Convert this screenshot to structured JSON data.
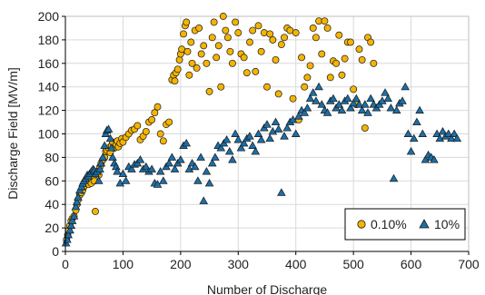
{
  "colors": {
    "series_a": "#F5B400",
    "series_b": "#1B6FA8",
    "marker_edge": "#1a1a1a",
    "grid": "#d9d9d9",
    "axis": "#000000"
  },
  "chart_data": {
    "type": "scatter",
    "xlabel": "Number of Discharge",
    "ylabel": "Discharge Field [MV/m]",
    "xlim": [
      0,
      700
    ],
    "ylim": [
      0,
      200
    ],
    "xticks": [
      0,
      100,
      200,
      300,
      400,
      500,
      600,
      700
    ],
    "yticks": [
      0,
      20,
      40,
      60,
      80,
      100,
      120,
      140,
      160,
      180,
      200
    ],
    "grid": true,
    "legend_position": "bottom-right",
    "series": [
      {
        "name": "0.10%",
        "marker": "circle",
        "color": "#F5B400",
        "points": [
          [
            2,
            10
          ],
          [
            4,
            14
          ],
          [
            6,
            18
          ],
          [
            8,
            22
          ],
          [
            10,
            26
          ],
          [
            12,
            28
          ],
          [
            15,
            30
          ],
          [
            18,
            35
          ],
          [
            20,
            40
          ],
          [
            22,
            44
          ],
          [
            25,
            48
          ],
          [
            28,
            50
          ],
          [
            30,
            52
          ],
          [
            32,
            55
          ],
          [
            35,
            58
          ],
          [
            38,
            60
          ],
          [
            40,
            57
          ],
          [
            42,
            62
          ],
          [
            45,
            58
          ],
          [
            48,
            64
          ],
          [
            50,
            60
          ],
          [
            52,
            34
          ],
          [
            55,
            68
          ],
          [
            58,
            65
          ],
          [
            60,
            72
          ],
          [
            62,
            75
          ],
          [
            65,
            78
          ],
          [
            68,
            80
          ],
          [
            70,
            85
          ],
          [
            72,
            86
          ],
          [
            75,
            88
          ],
          [
            78,
            84
          ],
          [
            80,
            90
          ],
          [
            82,
            93
          ],
          [
            85,
            88
          ],
          [
            88,
            91
          ],
          [
            90,
            94
          ],
          [
            92,
            89
          ],
          [
            95,
            92
          ],
          [
            98,
            96
          ],
          [
            100,
            93
          ],
          [
            105,
            97
          ],
          [
            110,
            100
          ],
          [
            115,
            103
          ],
          [
            120,
            104
          ],
          [
            125,
            107
          ],
          [
            130,
            95
          ],
          [
            135,
            98
          ],
          [
            140,
            102
          ],
          [
            145,
            110
          ],
          [
            150,
            112
          ],
          [
            155,
            118
          ],
          [
            160,
            123
          ],
          [
            165,
            100
          ],
          [
            170,
            94
          ],
          [
            175,
            108
          ],
          [
            180,
            110
          ],
          [
            185,
            146
          ],
          [
            188,
            150
          ],
          [
            190,
            145
          ],
          [
            192,
            152
          ],
          [
            195,
            155
          ],
          [
            198,
            163
          ],
          [
            200,
            168
          ],
          [
            202,
            172
          ],
          [
            205,
            185
          ],
          [
            208,
            192
          ],
          [
            210,
            195
          ],
          [
            212,
            170
          ],
          [
            215,
            150
          ],
          [
            218,
            178
          ],
          [
            220,
            160
          ],
          [
            225,
            188
          ],
          [
            228,
            156
          ],
          [
            232,
            190
          ],
          [
            236,
            168
          ],
          [
            240,
            175
          ],
          [
            245,
            160
          ],
          [
            250,
            136
          ],
          [
            255,
            182
          ],
          [
            258,
            195
          ],
          [
            262,
            165
          ],
          [
            266,
            175
          ],
          [
            270,
            140
          ],
          [
            274,
            200
          ],
          [
            278,
            188
          ],
          [
            282,
            182
          ],
          [
            286,
            170
          ],
          [
            290,
            160
          ],
          [
            295,
            195
          ],
          [
            300,
            186
          ],
          [
            305,
            168
          ],
          [
            310,
            165
          ],
          [
            315,
            152
          ],
          [
            320,
            178
          ],
          [
            325,
            188
          ],
          [
            330,
            153
          ],
          [
            335,
            192
          ],
          [
            340,
            170
          ],
          [
            345,
            186
          ],
          [
            350,
            140
          ],
          [
            355,
            185
          ],
          [
            360,
            180
          ],
          [
            365,
            163
          ],
          [
            370,
            134
          ],
          [
            375,
            176
          ],
          [
            380,
            182
          ],
          [
            385,
            190
          ],
          [
            390,
            188
          ],
          [
            395,
            130
          ],
          [
            400,
            186
          ],
          [
            405,
            112
          ],
          [
            410,
            165
          ],
          [
            415,
            140
          ],
          [
            420,
            148
          ],
          [
            425,
            158
          ],
          [
            430,
            190
          ],
          [
            435,
            182
          ],
          [
            440,
            196
          ],
          [
            445,
            168
          ],
          [
            450,
            196
          ],
          [
            455,
            190
          ],
          [
            460,
            148
          ],
          [
            465,
            162
          ],
          [
            470,
            160
          ],
          [
            475,
            184
          ],
          [
            480,
            150
          ],
          [
            485,
            164
          ],
          [
            490,
            178
          ],
          [
            495,
            178
          ],
          [
            500,
            138
          ],
          [
            505,
            125
          ],
          [
            510,
            172
          ],
          [
            515,
            163
          ],
          [
            520,
            105
          ],
          [
            525,
            182
          ],
          [
            530,
            178
          ],
          [
            535,
            160
          ]
        ]
      },
      {
        "name": "10%",
        "marker": "triangle",
        "color": "#1B6FA8",
        "points": [
          [
            1,
            7
          ],
          [
            3,
            10
          ],
          [
            5,
            14
          ],
          [
            8,
            18
          ],
          [
            10,
            22
          ],
          [
            12,
            26
          ],
          [
            15,
            30
          ],
          [
            18,
            38
          ],
          [
            20,
            42
          ],
          [
            22,
            46
          ],
          [
            25,
            52
          ],
          [
            28,
            55
          ],
          [
            30,
            58
          ],
          [
            32,
            60
          ],
          [
            35,
            62
          ],
          [
            38,
            65
          ],
          [
            40,
            64
          ],
          [
            42,
            66
          ],
          [
            45,
            68
          ],
          [
            48,
            70
          ],
          [
            50,
            69
          ],
          [
            52,
            66
          ],
          [
            55,
            68
          ],
          [
            58,
            60
          ],
          [
            60,
            70
          ],
          [
            62,
            75
          ],
          [
            65,
            80
          ],
          [
            68,
            90
          ],
          [
            70,
            100
          ],
          [
            72,
            103
          ],
          [
            75,
            104
          ],
          [
            78,
            96
          ],
          [
            80,
            88
          ],
          [
            82,
            80
          ],
          [
            85,
            75
          ],
          [
            88,
            72
          ],
          [
            90,
            68
          ],
          [
            95,
            58
          ],
          [
            100,
            66
          ],
          [
            105,
            60
          ],
          [
            110,
            72
          ],
          [
            115,
            70
          ],
          [
            120,
            74
          ],
          [
            125,
            75
          ],
          [
            130,
            78
          ],
          [
            135,
            70
          ],
          [
            140,
            72
          ],
          [
            145,
            68
          ],
          [
            150,
            70
          ],
          [
            155,
            58
          ],
          [
            160,
            57
          ],
          [
            165,
            68
          ],
          [
            170,
            60
          ],
          [
            175,
            72
          ],
          [
            180,
            75
          ],
          [
            185,
            80
          ],
          [
            190,
            70
          ],
          [
            195,
            75
          ],
          [
            200,
            78
          ],
          [
            205,
            90
          ],
          [
            210,
            92
          ],
          [
            215,
            70
          ],
          [
            220,
            75
          ],
          [
            225,
            72
          ],
          [
            230,
            60
          ],
          [
            235,
            80
          ],
          [
            240,
            43
          ],
          [
            245,
            68
          ],
          [
            250,
            58
          ],
          [
            255,
            75
          ],
          [
            260,
            80
          ],
          [
            265,
            90
          ],
          [
            270,
            88
          ],
          [
            275,
            92
          ],
          [
            280,
            95
          ],
          [
            285,
            85
          ],
          [
            290,
            78
          ],
          [
            295,
            100
          ],
          [
            300,
            95
          ],
          [
            305,
            88
          ],
          [
            310,
            92
          ],
          [
            315,
            96
          ],
          [
            320,
            98
          ],
          [
            325,
            90
          ],
          [
            330,
            85
          ],
          [
            335,
            100
          ],
          [
            340,
            95
          ],
          [
            345,
            105
          ],
          [
            350,
            108
          ],
          [
            355,
            96
          ],
          [
            360,
            102
          ],
          [
            365,
            110
          ],
          [
            370,
            104
          ],
          [
            375,
            50
          ],
          [
            380,
            98
          ],
          [
            385,
            105
          ],
          [
            390,
            110
          ],
          [
            395,
            112
          ],
          [
            400,
            100
          ],
          [
            405,
            115
          ],
          [
            410,
            120
          ],
          [
            415,
            118
          ],
          [
            420,
            122
          ],
          [
            425,
            130
          ],
          [
            430,
            135
          ],
          [
            435,
            128
          ],
          [
            440,
            140
          ],
          [
            445,
            125
          ],
          [
            450,
            120
          ],
          [
            455,
            118
          ],
          [
            460,
            128
          ],
          [
            465,
            130
          ],
          [
            470,
            122
          ],
          [
            475,
            125
          ],
          [
            480,
            120
          ],
          [
            485,
            128
          ],
          [
            490,
            130
          ],
          [
            495,
            122
          ],
          [
            500,
            126
          ],
          [
            505,
            130
          ],
          [
            510,
            125
          ],
          [
            515,
            120
          ],
          [
            520,
            125
          ],
          [
            525,
            118
          ],
          [
            530,
            130
          ],
          [
            535,
            125
          ],
          [
            540,
            122
          ],
          [
            545,
            125
          ],
          [
            550,
            128
          ],
          [
            555,
            135
          ],
          [
            560,
            130
          ],
          [
            565,
            122
          ],
          [
            570,
            62
          ],
          [
            575,
            120
          ],
          [
            580,
            126
          ],
          [
            585,
            128
          ],
          [
            590,
            140
          ],
          [
            595,
            100
          ],
          [
            600,
            85
          ],
          [
            605,
            96
          ],
          [
            610,
            110
          ],
          [
            615,
            120
          ],
          [
            620,
            100
          ],
          [
            625,
            78
          ],
          [
            630,
            82
          ],
          [
            635,
            80
          ],
          [
            640,
            78
          ],
          [
            645,
            100
          ],
          [
            650,
            96
          ],
          [
            655,
            102
          ],
          [
            660,
            98
          ],
          [
            665,
            100
          ],
          [
            670,
            96
          ],
          [
            675,
            100
          ],
          [
            680,
            96
          ]
        ]
      }
    ]
  }
}
